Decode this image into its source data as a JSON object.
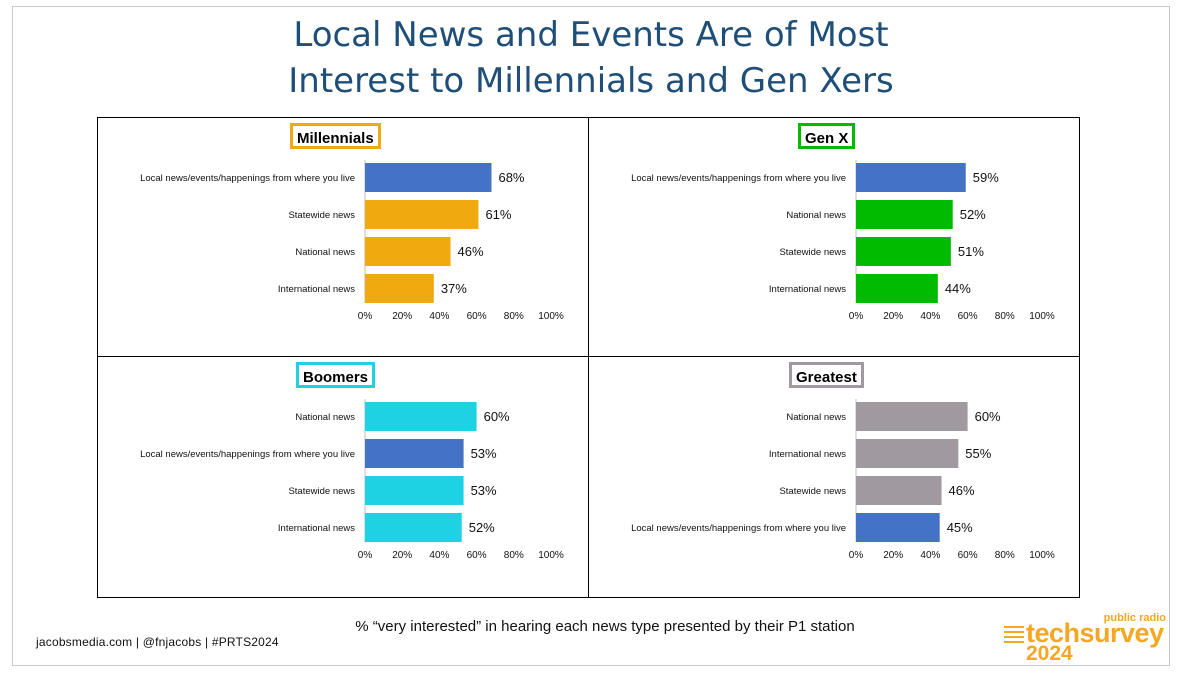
{
  "title_lines": [
    "Local News and Events Are of Most",
    "Interest to Millennials and Gen Xers"
  ],
  "footnote": "% “very interested” in hearing each news type presented by their P1 station",
  "credits": "jacobsmedia.com   |   @fnjacobs   |   #PRTS2024",
  "logo": {
    "top": "public radio",
    "brand": "techsurvey",
    "year": "2024",
    "color": "#f5a623"
  },
  "colors": {
    "local": "#4472c4",
    "millennials": "#f0aa0f",
    "genx": "#00bb00",
    "boomers": "#1ed2e3",
    "greatest": "#a09aa0"
  },
  "chart_data": [
    {
      "type": "bar",
      "orientation": "horizontal",
      "title": "Millennials",
      "badge_color": "#f0aa0f",
      "bar_color": "#f0aa0f",
      "categories": [
        "Local news/events/happenings from where you live",
        "Statewide news",
        "National news",
        "International news"
      ],
      "values": [
        68,
        61,
        46,
        37
      ],
      "highlight": [
        true,
        false,
        false,
        false
      ],
      "xlim": [
        0,
        100
      ],
      "ticks": [
        "0%",
        "20%",
        "40%",
        "60%",
        "80%",
        "100%"
      ]
    },
    {
      "type": "bar",
      "orientation": "horizontal",
      "title": "Gen X",
      "badge_color": "#00bb00",
      "bar_color": "#00bb00",
      "categories": [
        "Local news/events/happenings from where you live",
        "National news",
        "Statewide news",
        "International news"
      ],
      "values": [
        59,
        52,
        51,
        44
      ],
      "highlight": [
        true,
        false,
        false,
        false
      ],
      "xlim": [
        0,
        100
      ],
      "ticks": [
        "0%",
        "20%",
        "40%",
        "60%",
        "80%",
        "100%"
      ]
    },
    {
      "type": "bar",
      "orientation": "horizontal",
      "title": "Boomers",
      "badge_color": "#1ed2e3",
      "bar_color": "#1ed2e3",
      "categories": [
        "National news",
        "Local news/events/happenings from where you live",
        "Statewide news",
        "International news"
      ],
      "values": [
        60,
        53,
        53,
        52
      ],
      "highlight": [
        false,
        true,
        false,
        false
      ],
      "xlim": [
        0,
        100
      ],
      "ticks": [
        "0%",
        "20%",
        "40%",
        "60%",
        "80%",
        "100%"
      ]
    },
    {
      "type": "bar",
      "orientation": "horizontal",
      "title": "Greatest",
      "badge_color": "#a09aa0",
      "bar_color": "#a09aa0",
      "categories": [
        "National news",
        "International news",
        "Statewide news",
        "Local news/events/happenings from where you live"
      ],
      "values": [
        60,
        55,
        46,
        45
      ],
      "highlight": [
        false,
        false,
        false,
        true
      ],
      "xlim": [
        0,
        100
      ],
      "ticks": [
        "0%",
        "20%",
        "40%",
        "60%",
        "80%",
        "100%"
      ]
    }
  ]
}
